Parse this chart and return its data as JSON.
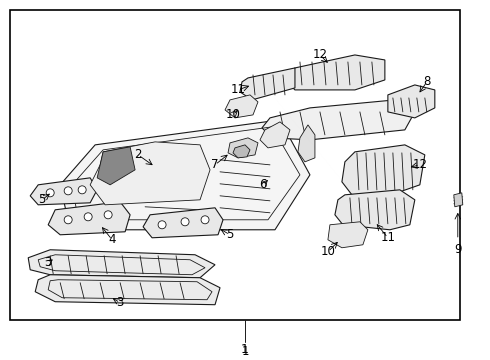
{
  "background_color": "#ffffff",
  "border_color": "#000000",
  "border_linewidth": 1.2,
  "fig_width": 4.9,
  "fig_height": 3.6,
  "dpi": 100,
  "line_color": "#1a1a1a",
  "gray_fill": "#e8e8e8",
  "dark_fill": "#555555"
}
